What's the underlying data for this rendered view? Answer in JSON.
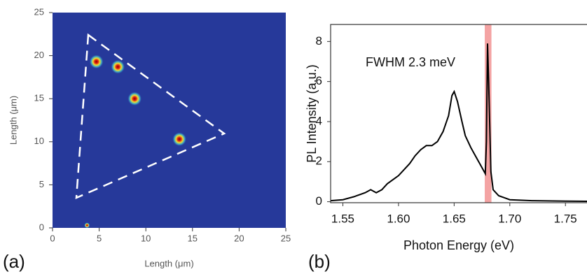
{
  "chart_data": [
    {
      "type": "scatter",
      "panel_label": "(a)",
      "x_label": "Length (μm)",
      "y_label": "Length (μm)",
      "x": [
        4.7,
        7.0,
        8.8,
        13.6,
        3.7
      ],
      "y": [
        19.3,
        18.7,
        15.0,
        10.3,
        0.3
      ],
      "xlim": [
        0,
        25
      ],
      "ylim": [
        0,
        25
      ],
      "xticks": [
        0,
        5,
        10,
        15,
        20,
        25
      ],
      "yticks": [
        0,
        5,
        10,
        15,
        20,
        25
      ],
      "background": "#26399a"
    },
    {
      "type": "line",
      "panel_label": "(b)",
      "annotation": "FWHM  2.3 meV",
      "x_label": "Photon Energy (eV)",
      "y_label": "PL Intensity (a.u.)",
      "x": [
        1.539,
        1.55,
        1.56,
        1.57,
        1.575,
        1.58,
        1.585,
        1.59,
        1.6,
        1.61,
        1.615,
        1.62,
        1.625,
        1.63,
        1.635,
        1.64,
        1.645,
        1.648,
        1.65,
        1.653,
        1.657,
        1.66,
        1.665,
        1.67,
        1.675,
        1.678,
        1.679,
        1.68,
        1.681,
        1.683,
        1.685,
        1.69,
        1.695,
        1.7,
        1.72,
        1.75,
        1.77
      ],
      "values": [
        0.05,
        0.1,
        0.25,
        0.45,
        0.6,
        0.45,
        0.6,
        0.9,
        1.3,
        1.9,
        2.3,
        2.6,
        2.8,
        2.8,
        3.0,
        3.5,
        4.3,
        5.3,
        5.5,
        5.0,
        4.0,
        3.3,
        2.7,
        2.2,
        1.7,
        1.4,
        3.0,
        7.9,
        6.0,
        1.5,
        0.6,
        0.3,
        0.2,
        0.1,
        0.05,
        0.03,
        0.02
      ],
      "color": "#000000",
      "highlight": {
        "range": [
          1.6775,
          1.6835
        ],
        "color": "#f4a3a3"
      },
      "xlim": [
        1.539,
        1.77
      ],
      "ylim": [
        -0.05,
        8.85
      ],
      "xticks": [
        1.55,
        {
          "value": 1.6,
          "label": "1.60"
        },
        1.65,
        {
          "value": 1.7,
          "label": "1.70"
        },
        1.75
      ],
      "yticks": [
        0,
        2,
        4,
        6,
        8
      ]
    }
  ]
}
